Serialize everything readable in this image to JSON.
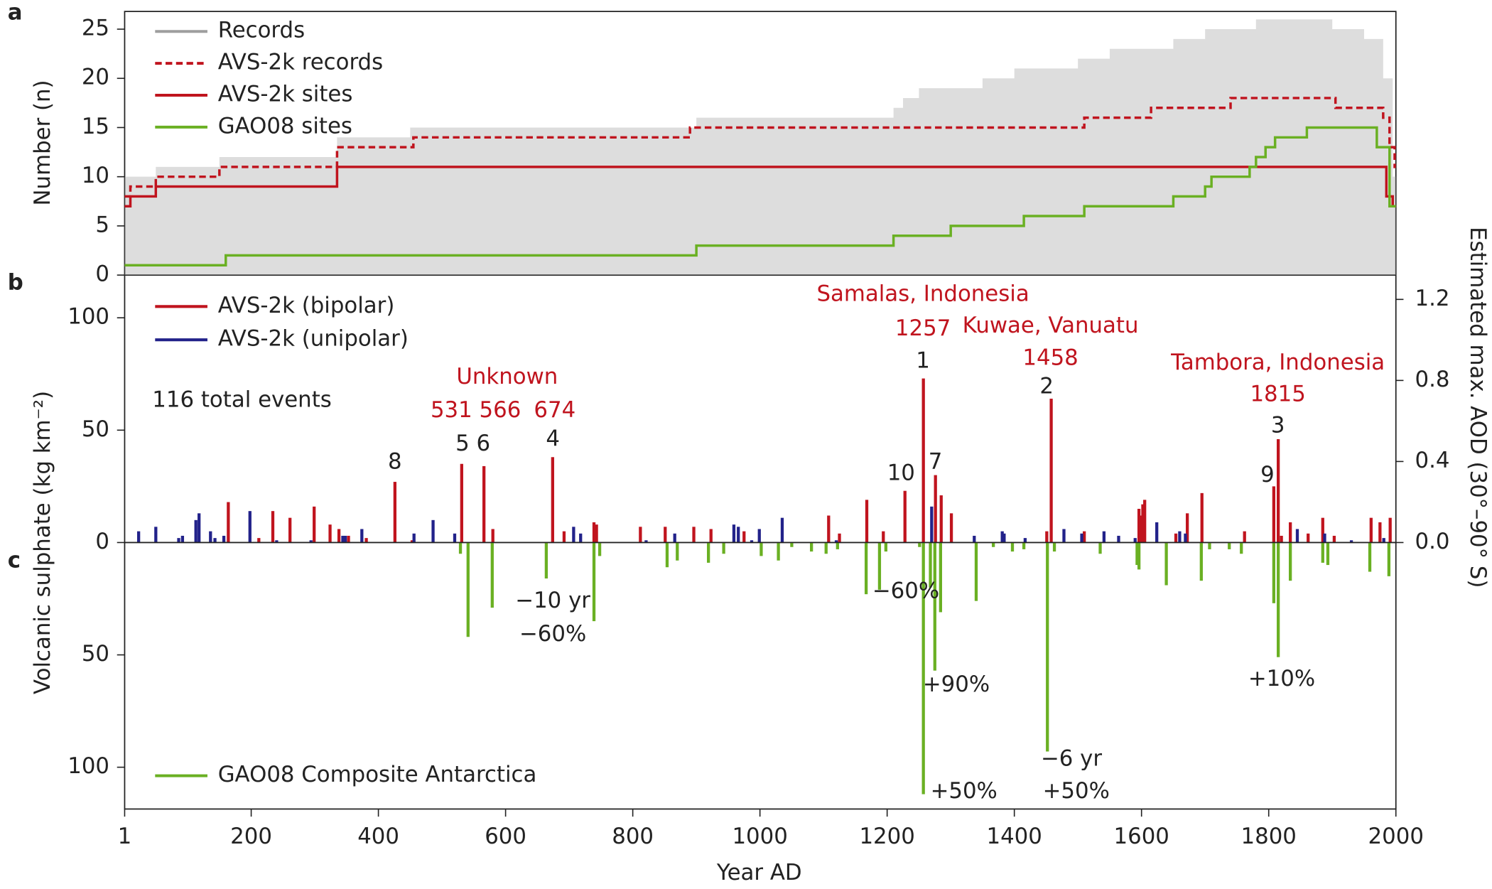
{
  "chart_data": [
    {
      "type": "line",
      "panel": "a",
      "ylabel": "Number (n)",
      "xlim": [
        1,
        2000
      ],
      "ylim": [
        0,
        26.8
      ],
      "yticks": [
        0,
        5,
        10,
        15,
        20,
        25
      ],
      "legend": "upper left",
      "series": [
        {
          "name": "Records",
          "color": "#9e9e9e",
          "style": "area",
          "x": [
            1,
            50,
            150,
            335,
            450,
            900,
            1210,
            1225,
            1250,
            1350,
            1400,
            1500,
            1550,
            1650,
            1700,
            1750,
            1780,
            1900,
            1950,
            1980,
            1995
          ],
          "values": [
            10,
            11,
            12,
            14,
            15,
            16,
            17,
            18,
            19,
            20,
            21,
            22,
            23,
            24,
            25,
            25,
            26,
            25,
            24,
            20,
            10
          ]
        },
        {
          "name": "AVS-2k records",
          "color": "#c0141e",
          "style": "dashed",
          "x": [
            1,
            10,
            50,
            150,
            335,
            455,
            890,
            1510,
            1615,
            1740,
            1905,
            1980,
            1990,
            1998
          ],
          "values": [
            8,
            9,
            10,
            11,
            13,
            14,
            15,
            16,
            17,
            18,
            17,
            16,
            13,
            11
          ]
        },
        {
          "name": "AVS-2k sites",
          "color": "#c0141e",
          "style": "solid",
          "x": [
            1,
            10,
            50,
            335,
            1985,
            1995
          ],
          "values": [
            7,
            8,
            9,
            11,
            8,
            7
          ]
        },
        {
          "name": "GAO08 sites",
          "color": "#6ab023",
          "style": "solid",
          "x": [
            1,
            160,
            900,
            1210,
            1300,
            1415,
            1510,
            1650,
            1700,
            1710,
            1770,
            1780,
            1795,
            1810,
            1860,
            1970,
            1990
          ],
          "values": [
            1,
            2,
            3,
            4,
            5,
            6,
            7,
            8,
            9,
            10,
            11,
            12,
            13,
            14,
            15,
            13,
            7
          ]
        }
      ]
    },
    {
      "type": "bar",
      "panel": "b",
      "ylabel": "Volcanic sulphate (kg km⁻²)",
      "y2label": "Estimated max. AOD (30°–90° S)",
      "xlim": [
        1,
        2000
      ],
      "ylim": [
        0,
        119
      ],
      "yticks": [
        0,
        50,
        100
      ],
      "y2lim": [
        0,
        1.32
      ],
      "y2ticks": [
        {
          "value": 0,
          "label": "0.0"
        },
        0.4,
        0.8,
        1.2
      ],
      "legend": "upper left",
      "note": "116 total events",
      "series": [
        {
          "name": "AVS-2k (bipolar)",
          "color": "#c0141e",
          "x": [
            164,
            212,
            234,
            261,
            299,
            324,
            338,
            353,
            381,
            426,
            453,
            531,
            566,
            580,
            674,
            692,
            739,
            743,
            812,
            851,
            896,
            923,
            975,
            1108,
            1125,
            1168,
            1194,
            1228,
            1257,
            1276,
            1285,
            1301,
            1451,
            1458,
            1510,
            1596,
            1599,
            1602,
            1605,
            1654,
            1672,
            1695,
            1762,
            1808,
            1815,
            1820,
            1834,
            1862,
            1885,
            1903,
            1961,
            1975,
            1991
          ],
          "values": [
            18,
            2,
            14,
            11,
            16,
            8,
            6,
            3,
            2,
            27,
            1,
            35,
            34,
            6,
            38,
            5,
            9,
            8,
            7,
            7,
            7,
            6,
            5,
            12,
            4,
            19,
            5,
            23,
            73,
            30,
            21,
            13,
            5,
            64,
            5,
            15,
            12,
            17,
            19,
            4,
            13,
            22,
            5,
            25,
            46,
            3,
            9,
            4,
            11,
            3,
            11,
            9,
            11
          ]
        },
        {
          "name": "AVS-2k (unipolar)",
          "color": "#22228a",
          "x": [
            23,
            50,
            86,
            92,
            113,
            118,
            136,
            143,
            157,
            198,
            240,
            294,
            344,
            348,
            374,
            456,
            486,
            520,
            707,
            718,
            821,
            866,
            959,
            966,
            987,
            999,
            1035,
            1120,
            1270,
            1337,
            1381,
            1384,
            1417,
            1478,
            1506,
            1541,
            1564,
            1590,
            1624,
            1660,
            1669,
            1845,
            1888,
            1930,
            1981
          ],
          "values": [
            5,
            7,
            2,
            3,
            10,
            13,
            5,
            2,
            3,
            14,
            1,
            1,
            3,
            3,
            6,
            4,
            10,
            4,
            7,
            4,
            1,
            4,
            8,
            7,
            1,
            6,
            11,
            1,
            16,
            3,
            5,
            4,
            2,
            6,
            4,
            5,
            3,
            2,
            9,
            5,
            4,
            6,
            4,
            1,
            2
          ]
        }
      ],
      "annotations": [
        {
          "text": "Samalas, Indonesia",
          "color": "#c0141e"
        },
        {
          "text": "1257",
          "color": "#c0141e"
        },
        {
          "text": "Kuwae, Vanuatu",
          "color": "#c0141e"
        },
        {
          "text": "1458",
          "color": "#c0141e"
        },
        {
          "text": "Tambora, Indonesia",
          "color": "#c0141e"
        },
        {
          "text": "1815",
          "color": "#c0141e"
        },
        {
          "text": "Unknown",
          "color": "#c0141e"
        },
        {
          "text": "531 566",
          "color": "#c0141e"
        },
        {
          "text": "674",
          "color": "#c0141e"
        },
        {
          "text": "1",
          "color": "#222"
        },
        {
          "text": "2",
          "color": "#222"
        },
        {
          "text": "3",
          "color": "#222"
        },
        {
          "text": "4",
          "color": "#222"
        },
        {
          "text": "5 6",
          "color": "#222"
        },
        {
          "text": "8",
          "color": "#222"
        },
        {
          "text": "10",
          "color": "#222"
        },
        {
          "text": "7",
          "color": "#222"
        },
        {
          "text": "9",
          "color": "#222"
        }
      ]
    },
    {
      "type": "bar",
      "panel": "c",
      "inverted": true,
      "xlabel": "Year AD",
      "xlim": [
        1,
        2000
      ],
      "xticks": [
        1,
        200,
        400,
        600,
        800,
        1000,
        1200,
        1400,
        1600,
        1800,
        2000
      ],
      "ylim": [
        0,
        118.6
      ],
      "yticks": [
        50,
        100
      ],
      "legend": "lower left",
      "series": [
        {
          "name": "GAO08 Composite Antarctica",
          "color": "#6ab023",
          "x": [
            529,
            541,
            579,
            664,
            739,
            748,
            854,
            870,
            919,
            943,
            1002,
            1029,
            1050,
            1081,
            1104,
            1122,
            1167,
            1188,
            1198,
            1251,
            1257,
            1268,
            1275,
            1284,
            1340,
            1367,
            1397,
            1415,
            1452,
            1463,
            1535,
            1593,
            1596,
            1639,
            1694,
            1707,
            1738,
            1757,
            1808,
            1815,
            1834,
            1885,
            1893,
            1959,
            1989
          ],
          "values": [
            5,
            42,
            29,
            16,
            35,
            6,
            11,
            8,
            9,
            5,
            6,
            8,
            2,
            4,
            5,
            3,
            23,
            21,
            4,
            2,
            112,
            20,
            57,
            31,
            26,
            2,
            4,
            3,
            93,
            4,
            5,
            10,
            12,
            19,
            17,
            3,
            3,
            5,
            27,
            51,
            17,
            9,
            10,
            13,
            15
          ]
        }
      ],
      "annotations": [
        {
          "text": "−10 yr",
          "color": "#222"
        },
        {
          "text": "−60%",
          "color": "#222"
        },
        {
          "text": "−60%",
          "color": "#222"
        },
        {
          "text": "+90%",
          "color": "#222"
        },
        {
          "text": "+50%",
          "color": "#222"
        },
        {
          "text": "−6 yr",
          "color": "#222"
        },
        {
          "text": "+50%",
          "color": "#222"
        },
        {
          "text": "+10%",
          "color": "#222"
        }
      ]
    }
  ]
}
